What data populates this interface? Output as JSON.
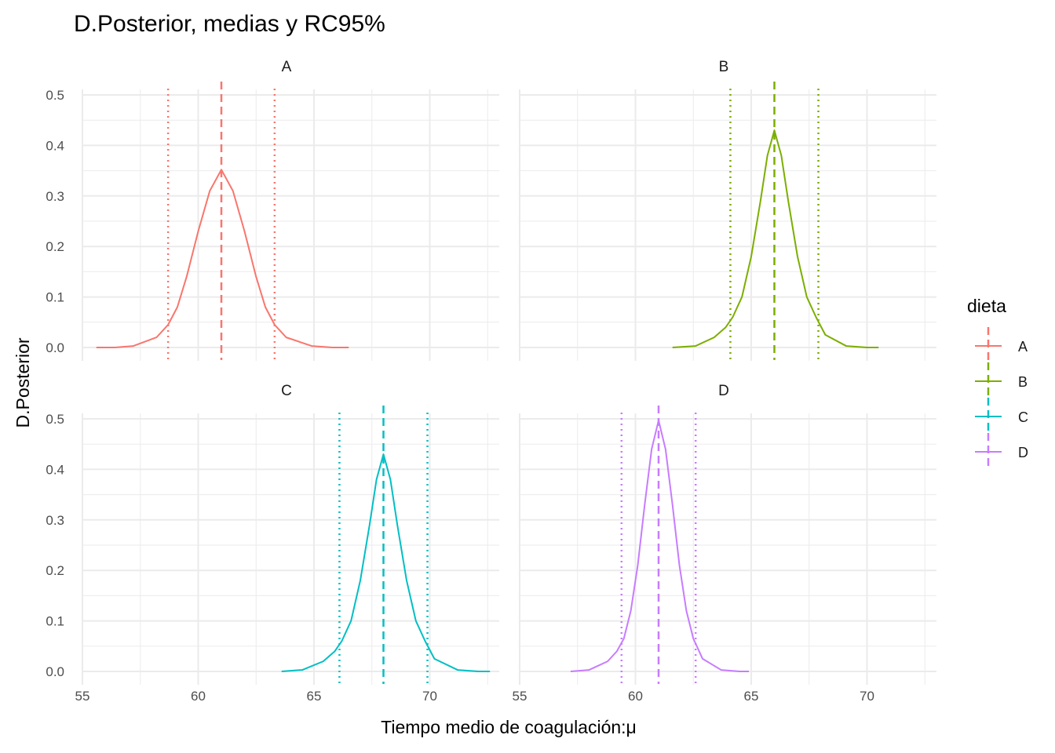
{
  "chart_data": {
    "type": "line",
    "title": "D.Posterior, medias y RC95%",
    "xlabel": "Tiempo medio de coagulación:μ",
    "ylabel": "D.Posterior",
    "xlim": [
      55,
      73
    ],
    "ylim": [
      0,
      0.5
    ],
    "x_ticks": [
      55,
      60,
      65,
      70
    ],
    "y_ticks": [
      0.0,
      0.1,
      0.2,
      0.3,
      0.4,
      0.5
    ],
    "x_tick_labels": [
      "55",
      "60",
      "65",
      "70"
    ],
    "y_tick_labels": [
      "0.0",
      "0.1",
      "0.2",
      "0.3",
      "0.4",
      "0.5"
    ],
    "grid": true,
    "legend": {
      "title": "dieta",
      "position": "right"
    },
    "facets": [
      {
        "label": "A",
        "color": "#F8766D",
        "mean": 61.0,
        "ci95": [
          58.7,
          63.3
        ],
        "x": [
          55.6,
          56.4,
          57.2,
          58.2,
          58.7,
          59.1,
          59.5,
          60.0,
          60.5,
          61.0,
          61.5,
          62.0,
          62.5,
          62.9,
          63.3,
          63.8,
          64.9,
          65.8,
          66.5
        ],
        "y": [
          0.0,
          0.0,
          0.003,
          0.02,
          0.045,
          0.08,
          0.14,
          0.23,
          0.31,
          0.352,
          0.31,
          0.23,
          0.14,
          0.08,
          0.045,
          0.02,
          0.003,
          0.0,
          0.0
        ]
      },
      {
        "label": "B",
        "color": "#7CAE00",
        "mean": 66.0,
        "ci95": [
          64.1,
          67.9
        ],
        "x": [
          61.6,
          62.6,
          63.4,
          63.9,
          64.2,
          64.6,
          65.0,
          65.4,
          65.7,
          66.0,
          66.3,
          66.6,
          67.0,
          67.4,
          67.8,
          68.2,
          69.1,
          70.0,
          70.5
        ],
        "y": [
          0.0,
          0.003,
          0.02,
          0.04,
          0.06,
          0.1,
          0.18,
          0.29,
          0.38,
          0.43,
          0.38,
          0.29,
          0.18,
          0.1,
          0.06,
          0.025,
          0.003,
          0.0,
          0.0
        ]
      },
      {
        "label": "C",
        "color": "#00BFC4",
        "mean": 68.0,
        "ci95": [
          66.1,
          69.9
        ],
        "x": [
          63.6,
          64.5,
          65.4,
          65.9,
          66.2,
          66.6,
          67.0,
          67.4,
          67.7,
          68.0,
          68.3,
          68.6,
          69.0,
          69.4,
          69.8,
          70.2,
          71.2,
          72.1,
          72.6
        ],
        "y": [
          0.0,
          0.003,
          0.02,
          0.04,
          0.06,
          0.1,
          0.18,
          0.29,
          0.38,
          0.43,
          0.38,
          0.29,
          0.18,
          0.1,
          0.06,
          0.025,
          0.003,
          0.0,
          0.0
        ]
      },
      {
        "label": "D",
        "color": "#C77CFF",
        "mean": 61.0,
        "ci95": [
          59.4,
          62.6
        ],
        "x": [
          57.2,
          58.0,
          58.8,
          59.2,
          59.5,
          59.8,
          60.1,
          60.4,
          60.7,
          61.0,
          61.3,
          61.6,
          61.9,
          62.2,
          62.5,
          62.9,
          63.7,
          64.5,
          64.9
        ],
        "y": [
          0.0,
          0.003,
          0.02,
          0.04,
          0.065,
          0.12,
          0.21,
          0.33,
          0.44,
          0.497,
          0.44,
          0.33,
          0.21,
          0.12,
          0.065,
          0.025,
          0.003,
          0.0,
          0.0
        ]
      }
    ]
  }
}
